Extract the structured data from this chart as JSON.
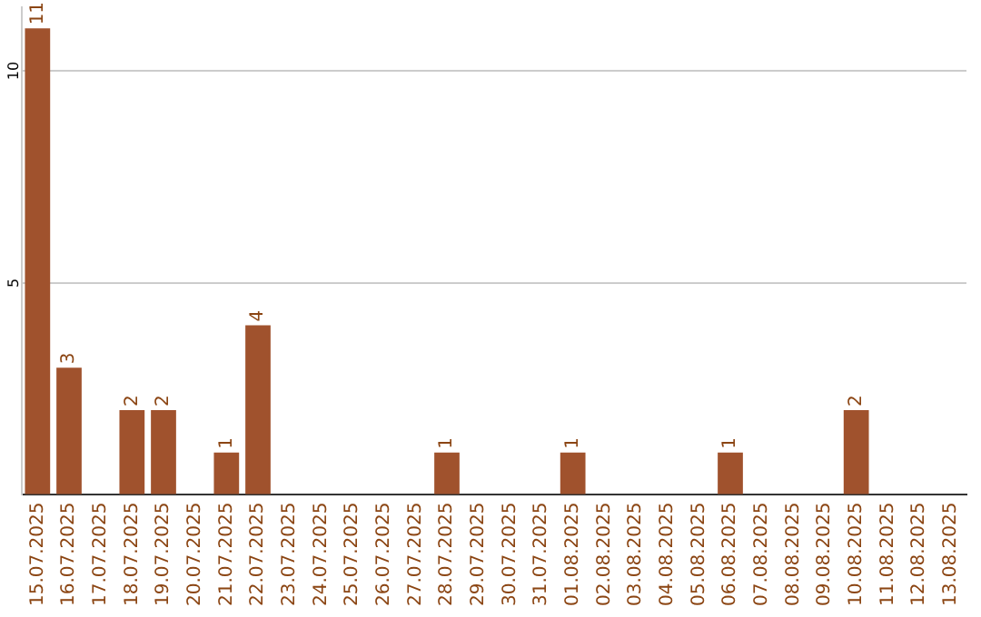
{
  "chart_data": {
    "type": "bar",
    "categories": [
      "15.07.2025",
      "16.07.2025",
      "17.07.2025",
      "18.07.2025",
      "19.07.2025",
      "20.07.2025",
      "21.07.2025",
      "22.07.2025",
      "23.07.2025",
      "24.07.2025",
      "25.07.2025",
      "26.07.2025",
      "27.07.2025",
      "28.07.2025",
      "29.07.2025",
      "30.07.2025",
      "31.07.2025",
      "01.08.2025",
      "02.08.2025",
      "03.08.2025",
      "04.08.2025",
      "05.08.2025",
      "06.08.2025",
      "07.08.2025",
      "08.08.2025",
      "09.08.2025",
      "10.08.2025",
      "11.08.2025",
      "12.08.2025",
      "13.08.2025"
    ],
    "values": [
      11,
      3,
      0,
      2,
      2,
      0,
      1,
      4,
      0,
      0,
      0,
      0,
      0,
      1,
      0,
      0,
      0,
      1,
      0,
      0,
      0,
      0,
      1,
      0,
      0,
      0,
      2,
      0,
      0,
      0
    ],
    "value_labels": [
      "11",
      "3",
      null,
      "2",
      "2",
      null,
      "1",
      "4",
      null,
      null,
      null,
      null,
      null,
      "1",
      null,
      null,
      null,
      "1",
      null,
      null,
      null,
      null,
      "1",
      null,
      null,
      null,
      "2",
      null,
      null,
      null
    ],
    "color": "#a0522d",
    "ylim": [
      0,
      11.5
    ],
    "yticks": [
      {
        "value": 0,
        "label": null
      },
      5,
      10
    ],
    "grid": "y",
    "legend": false
  }
}
